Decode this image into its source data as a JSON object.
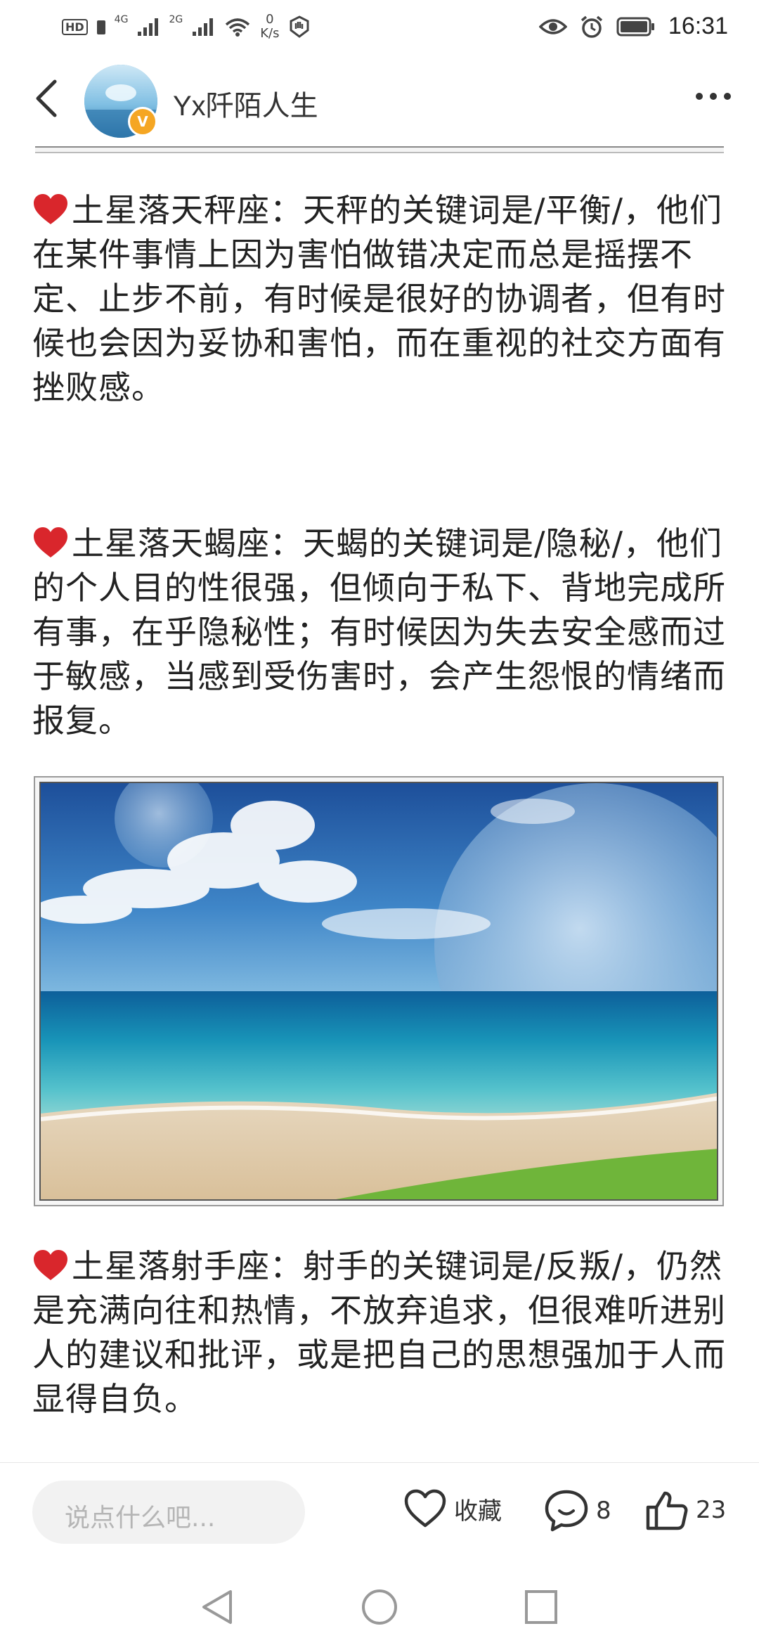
{
  "status_bar": {
    "hd": "HD",
    "signal1": "4G",
    "signal2": "2G",
    "net_speed_value": "0",
    "net_speed_unit": "K/s",
    "time": "16:31"
  },
  "header": {
    "username": "Yx阡陌人生",
    "badge": "V"
  },
  "post": {
    "paragraphs": [
      {
        "text": "土星落天秤座：天秤的关键词是/平衡/，他们在某件事情上因为害怕做错决定而总是摇摆不定、止步不前，有时候是很好的协调者，但有时候也会因为妥协和害怕，而在重视的社交方面有挫败感。"
      },
      {
        "text": "土星落天蝎座：天蝎的关键词是/隐秘/，他们的个人目的性很强，但倾向于私下、背地完成所有事，在乎隐秘性；有时候因为失去安全感而过于敏感，当感到受伤害时，会产生怨恨的情绪而报复。"
      },
      {
        "text": "土星落射手座：射手的关键词是/反叛/，仍然是充满向往和热情，不放弃追求，但很难听进别人的建议和批评，或是把自己的思想强加于人而显得自负。"
      }
    ]
  },
  "bottom_bar": {
    "comment_placeholder": "说点什么吧...",
    "favorite_label": "收藏",
    "comment_count": "8",
    "like_count": "23"
  },
  "colors": {
    "heart": "#d9262c",
    "badge": "#f5a623",
    "text": "#222222"
  }
}
